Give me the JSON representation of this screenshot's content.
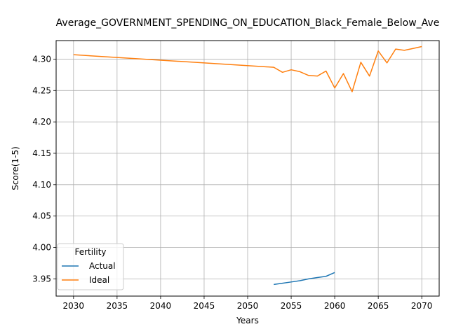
{
  "chart_data": {
    "type": "line",
    "title": "Average_GOVERNMENT_SPENDING_ON_EDUCATION_Black_Female_Below_Ave",
    "xlabel": "Years",
    "ylabel": "Score(1-5)",
    "xlim": [
      2028.0,
      2072.0
    ],
    "ylim": [
      3.9225,
      4.3295
    ],
    "xticks": [
      2030,
      2035,
      2040,
      2045,
      2050,
      2055,
      2060,
      2065,
      2070
    ],
    "yticks": [
      3.95,
      4.0,
      4.05,
      4.1,
      4.15,
      4.2,
      4.25,
      4.3
    ],
    "ytick_labels": [
      "3.95",
      "4.00",
      "4.05",
      "4.10",
      "4.15",
      "4.20",
      "4.25",
      "4.30"
    ],
    "grid": true,
    "legend": {
      "title": "Fertility",
      "placement": "lower-left"
    },
    "series": [
      {
        "name": "Actual",
        "color": "#1f77b4",
        "x": [
          2053,
          2054,
          2055,
          2056,
          2057,
          2058,
          2059,
          2060
        ],
        "y": [
          3.941,
          3.943,
          3.945,
          3.947,
          3.95,
          3.952,
          3.954,
          3.96
        ]
      },
      {
        "name": "Ideal",
        "color": "#ff7f0e",
        "x": [
          2030,
          2053,
          2054,
          2055,
          2056,
          2057,
          2058,
          2059,
          2060,
          2061,
          2062,
          2063,
          2064,
          2065,
          2066,
          2067,
          2068,
          2069,
          2070
        ],
        "y": [
          4.307,
          4.287,
          4.279,
          4.283,
          4.28,
          4.274,
          4.273,
          4.281,
          4.254,
          4.277,
          4.248,
          4.295,
          4.273,
          4.313,
          4.294,
          4.316,
          4.314,
          4.317,
          4.32
        ]
      }
    ]
  }
}
